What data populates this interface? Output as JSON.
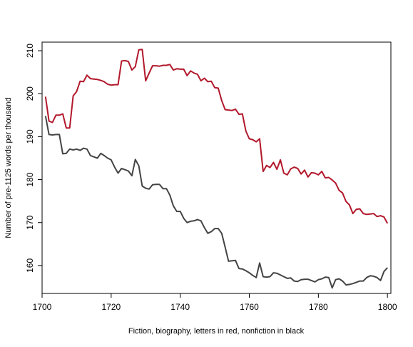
{
  "chart_data": {
    "type": "line",
    "title": "",
    "xlabel": "Fiction, biography, letters in red, nonfiction in black",
    "ylabel": "Number of pre-1125 words per thousand",
    "xlim": [
      1700,
      1801
    ],
    "ylim": [
      153.5,
      212
    ],
    "x_ticks": [
      1700,
      1720,
      1740,
      1760,
      1780,
      1800
    ],
    "y_ticks": [
      160,
      170,
      180,
      190,
      200,
      210
    ],
    "grid": false,
    "legend": "none",
    "series": [
      {
        "color": "#b2182b",
        "x": [
          1701,
          1702,
          1703,
          1704,
          1705,
          1706,
          1707,
          1708,
          1709,
          1710,
          1711,
          1712,
          1713,
          1714,
          1715,
          1716,
          1717,
          1718,
          1719,
          1720,
          1721,
          1722,
          1723,
          1724,
          1725,
          1726,
          1727,
          1728,
          1729,
          1730,
          1731,
          1732,
          1733,
          1734,
          1735,
          1736,
          1737,
          1738,
          1739,
          1740,
          1741,
          1742,
          1743,
          1744,
          1745,
          1746,
          1747,
          1748,
          1749,
          1750,
          1751,
          1752,
          1753,
          1754,
          1755,
          1756,
          1757,
          1758,
          1759,
          1760,
          1761,
          1762,
          1763,
          1764,
          1765,
          1766,
          1767,
          1768,
          1769,
          1770,
          1771,
          1772,
          1773,
          1774,
          1775,
          1776,
          1777,
          1778,
          1779,
          1780,
          1781,
          1782,
          1783,
          1784,
          1785,
          1786,
          1787,
          1788,
          1789,
          1790,
          1791,
          1792,
          1793,
          1794,
          1795,
          1796,
          1797,
          1798,
          1799,
          1800
        ],
        "y": [
          199.3,
          193.6,
          193.3,
          195.0,
          195.0,
          195.3,
          192.0,
          192.0,
          199.5,
          200.5,
          202.9,
          202.8,
          204.3,
          203.5,
          203.4,
          203.3,
          203.1,
          202.8,
          202.2,
          202.0,
          202.1,
          202.1,
          207.6,
          207.7,
          207.5,
          205.5,
          206.3,
          210.2,
          210.3,
          203.0,
          204.8,
          206.5,
          206.5,
          206.4,
          206.6,
          206.6,
          206.8,
          205.5,
          205.8,
          205.7,
          205.7,
          204.2,
          205.3,
          204.8,
          204.5,
          203.0,
          203.6,
          202.8,
          202.9,
          201.4,
          201.3,
          198.4,
          196.3,
          196.2,
          196.1,
          196.4,
          195.2,
          195.3,
          191.3,
          189.5,
          189.3,
          188.8,
          189.5,
          181.9,
          183.3,
          182.8,
          184.0,
          182.4,
          184.6,
          181.5,
          181.1,
          182.5,
          182.9,
          182.6,
          181.3,
          182.2,
          180.6,
          181.6,
          181.5,
          181.1,
          181.9,
          180.4,
          180.5,
          179.9,
          179.2,
          177.5,
          176.9,
          174.9,
          174.1,
          172.1,
          173.1,
          173.2,
          172.1,
          171.9,
          172.0,
          172.1,
          171.4,
          171.6,
          171.3,
          169.8
        ]
      },
      {
        "color": "#444444",
        "x": [
          1701,
          1702,
          1703,
          1704,
          1705,
          1706,
          1707,
          1708,
          1709,
          1710,
          1711,
          1712,
          1713,
          1714,
          1715,
          1716,
          1717,
          1718,
          1719,
          1720,
          1721,
          1722,
          1723,
          1724,
          1725,
          1726,
          1727,
          1728,
          1729,
          1730,
          1731,
          1732,
          1733,
          1734,
          1735,
          1736,
          1737,
          1738,
          1739,
          1740,
          1741,
          1742,
          1743,
          1744,
          1745,
          1746,
          1747,
          1748,
          1749,
          1750,
          1751,
          1752,
          1753,
          1754,
          1755,
          1756,
          1757,
          1758,
          1759,
          1760,
          1761,
          1762,
          1763,
          1764,
          1765,
          1766,
          1767,
          1768,
          1769,
          1770,
          1771,
          1772,
          1773,
          1774,
          1775,
          1776,
          1777,
          1778,
          1779,
          1780,
          1781,
          1782,
          1783,
          1784,
          1785,
          1786,
          1787,
          1788,
          1789,
          1790,
          1791,
          1792,
          1793,
          1794,
          1795,
          1796,
          1797,
          1798,
          1799,
          1800
        ],
        "y": [
          194.8,
          190.5,
          190.4,
          190.5,
          190.5,
          186.0,
          186.1,
          187.1,
          186.9,
          187.1,
          186.8,
          187.3,
          187.1,
          185.6,
          185.3,
          185.0,
          186.1,
          185.6,
          185.0,
          184.6,
          182.9,
          181.5,
          182.6,
          182.3,
          182.0,
          180.9,
          184.7,
          183.2,
          178.5,
          178.0,
          177.8,
          178.8,
          178.9,
          178.9,
          177.9,
          177.9,
          176.4,
          173.9,
          172.6,
          172.6,
          171.0,
          170.0,
          170.3,
          170.4,
          170.7,
          170.4,
          168.8,
          167.5,
          167.9,
          168.6,
          168.6,
          167.5,
          164.3,
          161.0,
          161.1,
          161.2,
          159.3,
          159.2,
          158.8,
          158.3,
          157.7,
          157.2,
          160.6,
          157.4,
          157.3,
          157.4,
          158.3,
          158.2,
          157.8,
          157.4,
          157.0,
          157.1,
          156.4,
          156.3,
          156.7,
          156.8,
          156.8,
          156.5,
          156.2,
          156.7,
          156.9,
          157.3,
          157.2,
          154.8,
          156.7,
          156.9,
          156.4,
          155.5,
          155.6,
          155.8,
          156.1,
          156.4,
          156.4,
          157.2,
          157.6,
          157.5,
          157.2,
          156.5,
          158.6,
          159.5
        ]
      }
    ]
  }
}
